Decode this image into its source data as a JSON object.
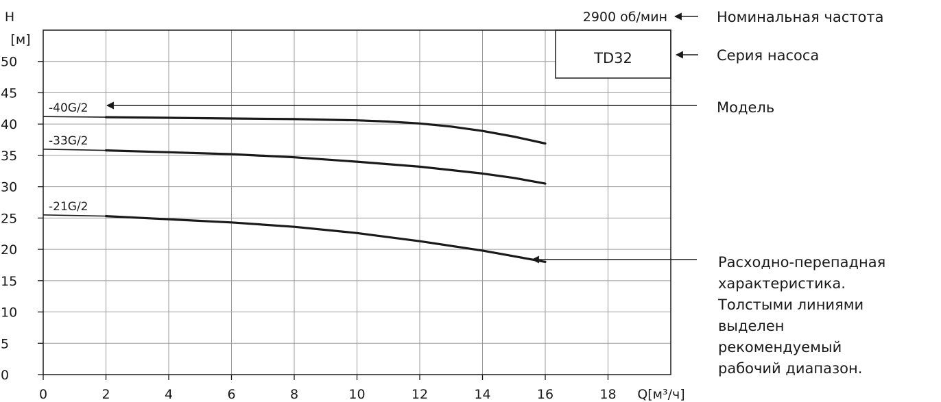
{
  "chart_data": {
    "type": "line",
    "ylabel_top": "H",
    "ylabel_unit": "[м]",
    "xlabel": "Q[м³/ч]",
    "xlim": [
      0,
      20
    ],
    "ylim": [
      0,
      55
    ],
    "x_ticks": [
      0,
      2,
      4,
      6,
      8,
      10,
      12,
      14,
      16,
      18
    ],
    "y_ticks": [
      0,
      5,
      10,
      15,
      20,
      25,
      30,
      35,
      40,
      45,
      50
    ],
    "grid": true,
    "series": [
      {
        "name": "-40G/2",
        "x": [
          0,
          2,
          4,
          6,
          8,
          10,
          11,
          12,
          13,
          14,
          15,
          16
        ],
        "y": [
          41.2,
          41.1,
          41.0,
          40.9,
          40.8,
          40.6,
          40.4,
          40.1,
          39.6,
          38.9,
          38.0,
          36.9
        ]
      },
      {
        "name": "-33G/2",
        "x": [
          0,
          2,
          4,
          6,
          8,
          10,
          12,
          14,
          15,
          16
        ],
        "y": [
          36.0,
          35.8,
          35.5,
          35.2,
          34.7,
          34.0,
          33.2,
          32.1,
          31.4,
          30.5
        ]
      },
      {
        "name": "-21G/2",
        "x": [
          0,
          2,
          4,
          6,
          8,
          10,
          12,
          14,
          16
        ],
        "y": [
          25.5,
          25.3,
          24.8,
          24.3,
          23.6,
          22.6,
          21.3,
          19.8,
          18.0
        ]
      }
    ]
  },
  "badge": "TD32",
  "speed_label": "2900 об/мин",
  "annotations": {
    "nominal_speed": "Номинальная частота",
    "pump_series": "Серия насоса",
    "model": "Модель",
    "curve_lines": [
      "Расходно-перепадная",
      "характеристика.",
      "Толстыми линиями",
      "выделен",
      "рекомендуемый",
      "рабочий диапазон."
    ]
  }
}
